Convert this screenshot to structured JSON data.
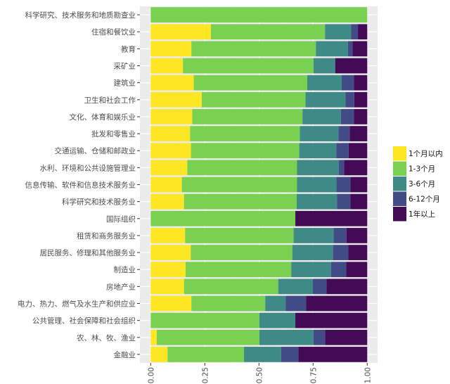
{
  "chart_data": {
    "type": "bar",
    "orientation": "horizontal",
    "stacked": "percent",
    "categories": [
      "科学研究、技术服务和地质勘查业",
      "住宿和餐饮业",
      "教育",
      "采矿业",
      "建筑业",
      "卫生和社会工作",
      "文化、体育和娱乐业",
      "批发和零售业",
      "交通运输、仓储和邮政业",
      "水利、环境和公共设施管理业",
      "信息传输、软件和信息技术服务业",
      "科学研究和技术服务业",
      "国际组织",
      "租赁和商务服务业",
      "居民服务、修理和其他服务业",
      "制造业",
      "房地产业",
      "电力、热力、燃气及水生产和供应业",
      "公共管理、社会保障和社会组织",
      "农、林、牧、渔业",
      "金融业"
    ],
    "series": [
      {
        "name": "1个月以内",
        "color": "#FDE725",
        "values": [
          0,
          0.278,
          0.188,
          0.149,
          0.199,
          0.236,
          0.192,
          0.182,
          0.186,
          0.169,
          0.144,
          0.154,
          0,
          0.159,
          0.185,
          0.161,
          0.154,
          0.188,
          0,
          0.028,
          0.078
        ]
      },
      {
        "name": "1-3个月",
        "color": "#7AD151",
        "values": [
          1,
          0.527,
          0.575,
          0.603,
          0.524,
          0.479,
          0.509,
          0.507,
          0.5,
          0.507,
          0.532,
          0.52,
          0.668,
          0.501,
          0.469,
          0.488,
          0.435,
          0.341,
          0.502,
          0.474,
          0.353
        ]
      },
      {
        "name": "3-6个月",
        "color": "#3E8A86",
        "values": [
          0,
          0.121,
          0.148,
          0.1,
          0.159,
          0.184,
          0.177,
          0.178,
          0.171,
          0.193,
          0.182,
          0.186,
          0,
          0.185,
          0.188,
          0.184,
          0.16,
          0.094,
          0.166,
          0.25,
          0.171
        ]
      },
      {
        "name": "6-12个月",
        "color": "#414C87",
        "values": [
          0,
          0.031,
          0.021,
          0,
          0.056,
          0.041,
          0.06,
          0.052,
          0.057,
          0.024,
          0.064,
          0.062,
          0,
          0.059,
          0.07,
          0.07,
          0.063,
          0.095,
          0,
          0.054,
          0.08
        ]
      },
      {
        "name": "1年以上",
        "color": "#430B55",
        "values": [
          0,
          0.043,
          0.068,
          0.148,
          0.062,
          0.06,
          0.062,
          0.081,
          0.086,
          0.107,
          0.078,
          0.078,
          0.332,
          0.096,
          0.088,
          0.097,
          0.188,
          0.282,
          0.332,
          0.194,
          0.318
        ]
      }
    ],
    "xlim": [
      0,
      1
    ],
    "xticks": [
      "0.00",
      "0.25",
      "0.50",
      "0.75",
      "1.00"
    ],
    "title": "",
    "xlabel": "",
    "ylabel": "",
    "grid": true,
    "legend_position": "right",
    "panel_background": "#EBEBEB"
  }
}
